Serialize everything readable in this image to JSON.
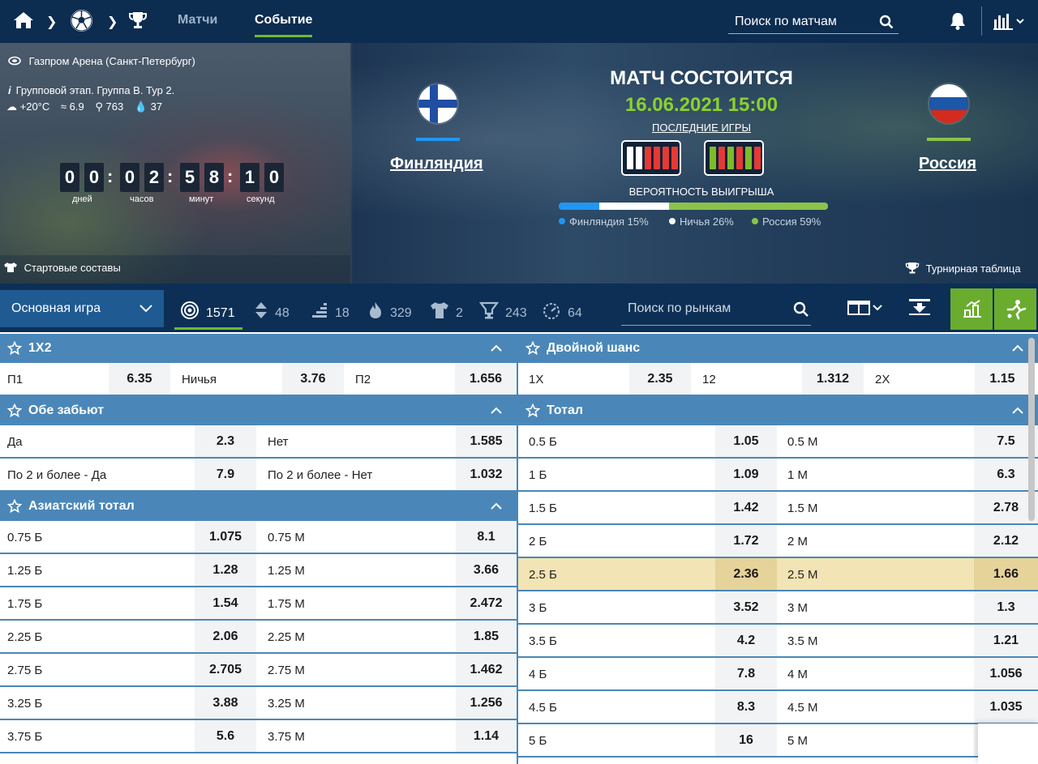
{
  "nav": {
    "home_icon": "home-icon",
    "sport_icon": "football-icon",
    "tournament_icon": "trophy-icon",
    "links": [
      {
        "label": "Матчи",
        "active": false
      },
      {
        "label": "Событие",
        "active": true
      }
    ],
    "search_placeholder": "Поиск по матчам",
    "bell_icon": "bell-icon",
    "stats_icon": "bar-chart-icon"
  },
  "event": {
    "stadium": "Газпром Арена (Санкт-Петербург)",
    "stage": "Групповой этап. Группа B. Тур 2.",
    "weather": {
      "temp": "+20°C",
      "wind": "6.9",
      "pressure": "763",
      "humidity": "37"
    },
    "countdown": {
      "days": [
        "0",
        "0"
      ],
      "hours": [
        "0",
        "2"
      ],
      "minutes": [
        "5",
        "8"
      ],
      "seconds": [
        "1",
        "0"
      ],
      "labels": {
        "days": "дней",
        "hours": "часов",
        "minutes": "минут",
        "seconds": "секунд"
      }
    },
    "lineups_label": "Стартовые составы",
    "standings_label": "Турнирная таблица",
    "status": "МАТЧ СОСТОИТСЯ",
    "datetime": "16.06.2021 15:00",
    "last_games_label": "ПОСЛЕДНИЕ ИГРЫ",
    "home": {
      "name": "Финляндия",
      "color": "#2196f3",
      "form": [
        "draw",
        "draw",
        "loss",
        "loss",
        "loss",
        "loss"
      ]
    },
    "away": {
      "name": "Россия",
      "color": "#8bc34a",
      "form": [
        "win",
        "loss",
        "win",
        "loss",
        "win",
        "loss"
      ]
    },
    "probability_label": "ВЕРОЯТНОСТЬ ВЫИГРЫША",
    "probabilities": [
      {
        "label": "Финляндия 15%",
        "value": 15,
        "color": "#2196f3"
      },
      {
        "label": "Ничья 26%",
        "value": 26,
        "color": "#ffffff"
      },
      {
        "label": "Россия 59%",
        "value": 59,
        "color": "#8bc34a"
      }
    ]
  },
  "tabs": {
    "main_game": "Основная игра",
    "items": [
      {
        "icon": "target-icon",
        "count": "1571",
        "active": true
      },
      {
        "icon": "updown-arrows-icon",
        "count": "48"
      },
      {
        "icon": "ladder-icon",
        "count": "18"
      },
      {
        "icon": "fire-icon",
        "count": "329"
      },
      {
        "icon": "shirt-icon",
        "count": "2"
      },
      {
        "icon": "cup-icon",
        "count": "243"
      },
      {
        "icon": "timer-icon",
        "count": "64"
      }
    ],
    "search_placeholder": "Поиск по рынкам"
  },
  "markets": {
    "m1x2": {
      "title": "1X2",
      "cells": [
        "П1",
        "6.35",
        "Ничья",
        "3.76",
        "П2",
        "1.656"
      ]
    },
    "double_chance": {
      "title": "Двойной шанс",
      "cells": [
        "1X",
        "2.35",
        "12",
        "1.312",
        "2X",
        "1.15"
      ]
    },
    "both_score": {
      "title": "Обе забьют",
      "rows": [
        [
          "Да",
          "2.3",
          "Нет",
          "1.585"
        ],
        [
          "По 2 и более - Да",
          "7.9",
          "По 2 и более - Нет",
          "1.032"
        ]
      ]
    },
    "asian_total": {
      "title": "Азиатский тотал",
      "rows": [
        [
          "0.75 Б",
          "1.075",
          "0.75 М",
          "8.1"
        ],
        [
          "1.25 Б",
          "1.28",
          "1.25 М",
          "3.66"
        ],
        [
          "1.75 Б",
          "1.54",
          "1.75 М",
          "2.472"
        ],
        [
          "2.25 Б",
          "2.06",
          "2.25 М",
          "1.85"
        ],
        [
          "2.75 Б",
          "2.705",
          "2.75 М",
          "1.462"
        ],
        [
          "3.25 Б",
          "3.88",
          "3.25 М",
          "1.256"
        ],
        [
          "3.75 Б",
          "5.6",
          "3.75 М",
          "1.14"
        ]
      ]
    },
    "total": {
      "title": "Тотал",
      "rows": [
        [
          "0.5 Б",
          "1.05",
          "0.5 М",
          "7.5"
        ],
        [
          "1 Б",
          "1.09",
          "1 М",
          "6.3"
        ],
        [
          "1.5 Б",
          "1.42",
          "1.5 М",
          "2.78"
        ],
        [
          "2 Б",
          "1.72",
          "2 М",
          "2.12"
        ],
        [
          "2.5 Б",
          "2.36",
          "2.5 М",
          "1.66"
        ],
        [
          "3 Б",
          "3.52",
          "3 М",
          "1.3"
        ],
        [
          "3.5 Б",
          "4.2",
          "3.5 М",
          "1.21"
        ],
        [
          "4 Б",
          "7.8",
          "4 М",
          "1.056"
        ],
        [
          "4.5 Б",
          "8.3",
          "4.5 М",
          "1.035"
        ],
        [
          "5 Б",
          "16",
          "5 М",
          ""
        ]
      ],
      "highlighted_row": 4
    }
  }
}
